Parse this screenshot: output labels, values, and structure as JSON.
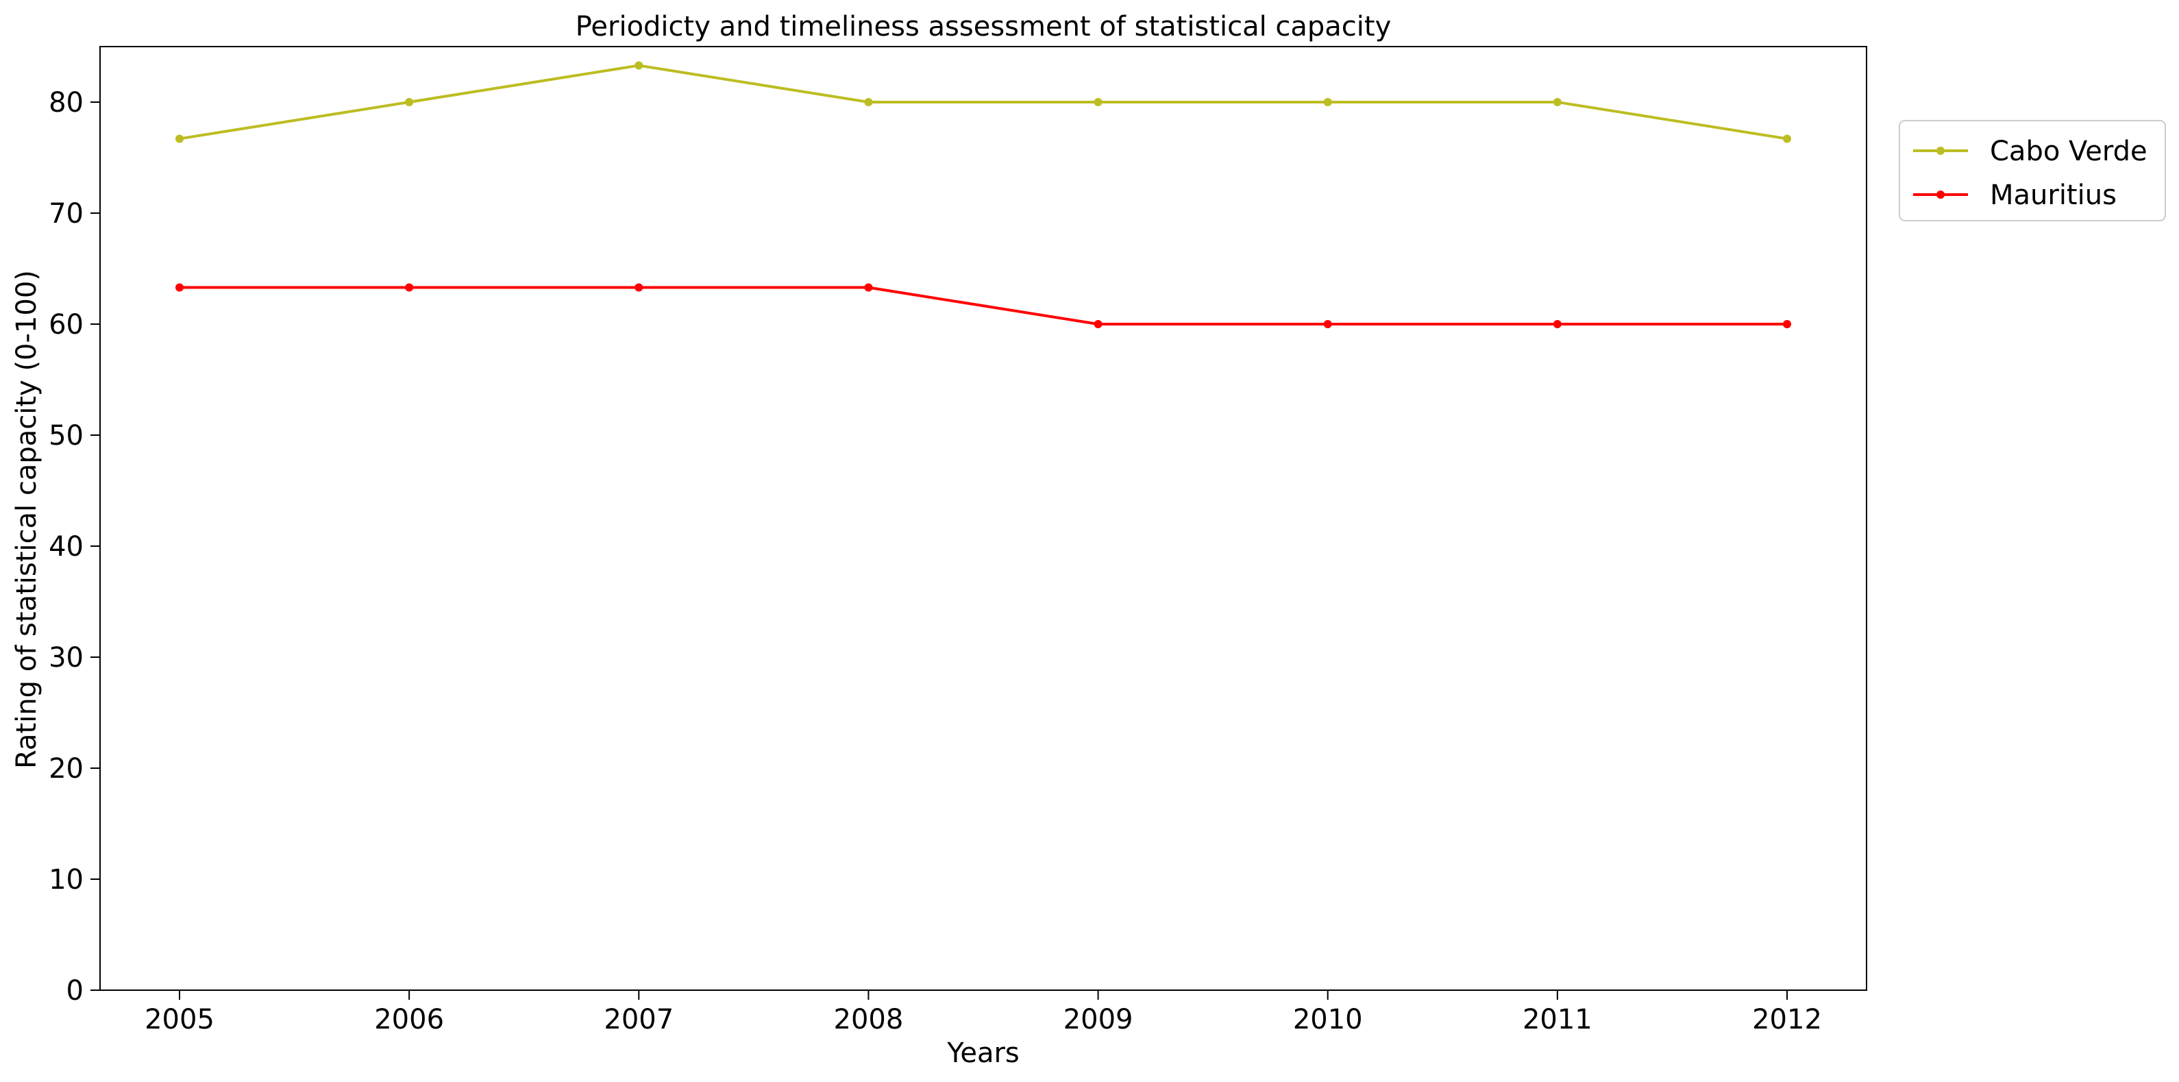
{
  "chart_data": {
    "type": "line",
    "title": "Periodicty and timeliness assessment of statistical capacity",
    "xlabel": "Years",
    "ylabel": "Rating of statistical capacity (0-100)",
    "x": [
      "2005",
      "2006",
      "2007",
      "2008",
      "2009",
      "2010",
      "2011",
      "2012"
    ],
    "ylim": [
      0,
      85
    ],
    "yticks": [
      0,
      10,
      20,
      30,
      40,
      50,
      60,
      70,
      80
    ],
    "grid": false,
    "legend_position": "right, outside plot area (upper)",
    "series": [
      {
        "name": "Cabo Verde",
        "color": "#bcbd22",
        "values": [
          76.7,
          80,
          83.3,
          80,
          80,
          80,
          80,
          76.7
        ]
      },
      {
        "name": "Mauritius",
        "color": "#ff0000",
        "values": [
          63.3,
          63.3,
          63.3,
          63.3,
          60,
          60,
          60,
          60
        ]
      }
    ]
  }
}
